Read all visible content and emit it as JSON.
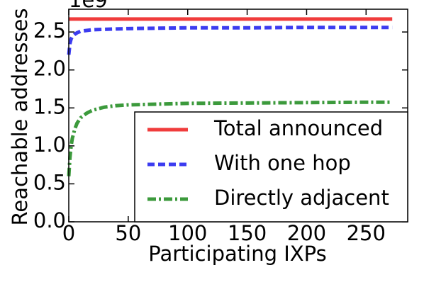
{
  "chart_data": {
    "type": "line",
    "y_offset_label": "1e9",
    "xlabel": "Participating IXPs",
    "ylabel": "Reachable addresses",
    "x": [
      0,
      1,
      2,
      3,
      5,
      7,
      10,
      15,
      20,
      30,
      40,
      50,
      75,
      100,
      150,
      200,
      250,
      272
    ],
    "series": [
      {
        "name": "Total announced",
        "color": "#f03c3c",
        "style": "solid",
        "values": [
          2.67,
          2.67,
          2.67,
          2.67,
          2.67,
          2.67,
          2.67,
          2.67,
          2.67,
          2.67,
          2.67,
          2.67,
          2.67,
          2.67,
          2.67,
          2.67,
          2.67,
          2.67
        ]
      },
      {
        "name": "With one hop",
        "color": "#3c3cf0",
        "style": "dashed",
        "values": [
          2.2,
          2.35,
          2.41,
          2.44,
          2.47,
          2.49,
          2.51,
          2.52,
          2.53,
          2.535,
          2.54,
          2.545,
          2.55,
          2.555,
          2.555,
          2.56,
          2.56,
          2.56
        ]
      },
      {
        "name": "Directly adjacent",
        "color": "#3c9a3c",
        "style": "dashdot",
        "values": [
          0.6,
          0.85,
          1.0,
          1.1,
          1.22,
          1.3,
          1.37,
          1.43,
          1.47,
          1.51,
          1.53,
          1.54,
          1.55,
          1.56,
          1.565,
          1.57,
          1.575,
          1.575
        ]
      }
    ],
    "xlim": [
      0,
      285
    ],
    "ylim": [
      0,
      2.8
    ],
    "xticks": [
      0,
      50,
      100,
      150,
      200,
      250
    ],
    "yticks": [
      {
        "value": 0,
        "label": "0.0"
      },
      0.5,
      {
        "value": 1,
        "label": "1.0"
      },
      1.5,
      {
        "value": 2,
        "label": "2.0"
      },
      2.5
    ],
    "legend": "lower right"
  }
}
